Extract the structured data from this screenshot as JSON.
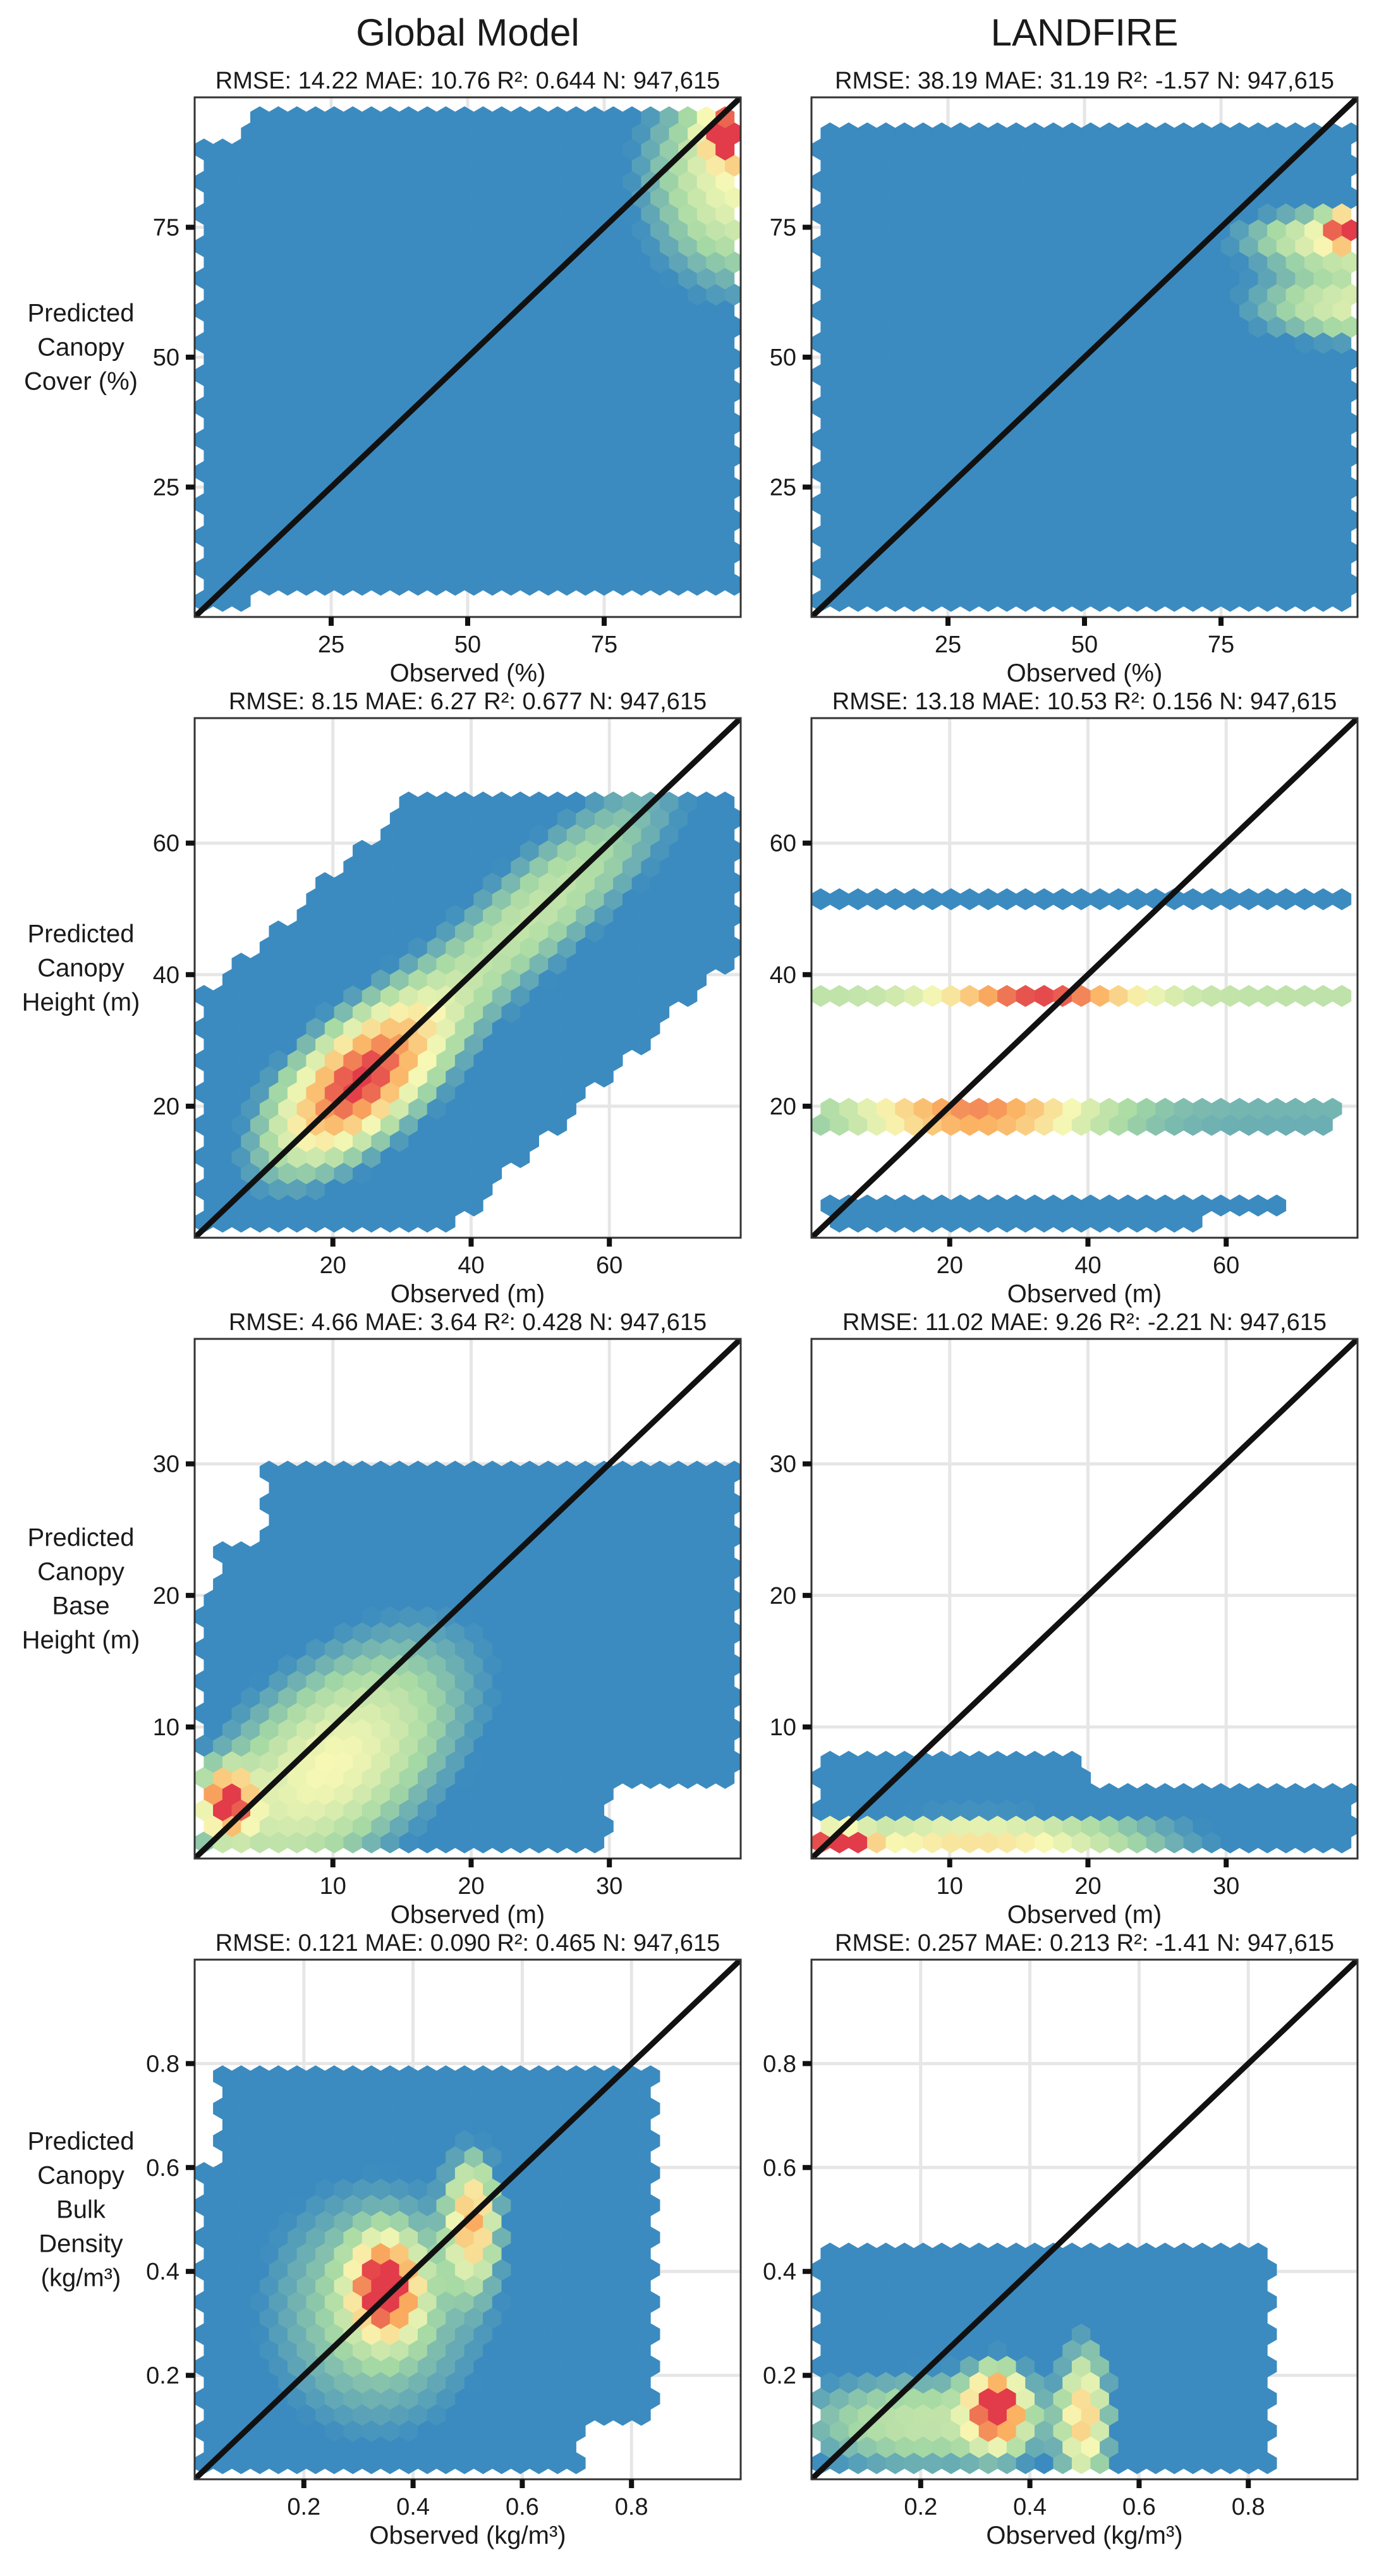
{
  "colors": {
    "base": "#3b8bc0",
    "low": "#a6d9a4",
    "mid": "#f7f8b4",
    "high": "#fbb060",
    "peak": "#e23b49",
    "diagonal": "#111111"
  },
  "chart_data": {
    "type": "heatmap",
    "style": "hexbin density scatter with 1:1 line",
    "columns": [
      "Global Model",
      "LANDFIRE"
    ],
    "rows": [
      {
        "ylabel": [
          "Predicted",
          "Canopy",
          "Cover (%)"
        ],
        "xlabel": "Observed (%)",
        "xlim": [
          0,
          100
        ],
        "ylim": [
          0,
          100
        ],
        "xticks": [
          25,
          50,
          75
        ],
        "yticks": [
          25,
          50,
          75
        ],
        "panels": [
          {
            "column": "Global Model",
            "stats": "RMSE: 14.22 MAE: 10.76 R²: 0.644 N: 947,615"
          },
          {
            "column": "LANDFIRE",
            "stats": "RMSE: 38.19 MAE: 31.19 R²: -1.57 N: 947,615"
          }
        ]
      },
      {
        "ylabel": [
          "Predicted",
          "Canopy",
          "Height (m)"
        ],
        "xlabel": "Observed (m)",
        "xlim": [
          0,
          79
        ],
        "ylim": [
          0,
          79
        ],
        "xticks": [
          20,
          40,
          60
        ],
        "yticks": [
          20,
          40,
          60
        ],
        "panels": [
          {
            "column": "Global Model",
            "stats": "RMSE: 8.15 MAE: 6.27 R²: 0.677 N: 947,615"
          },
          {
            "column": "LANDFIRE",
            "stats": "RMSE: 13.18 MAE: 10.53 R²: 0.156 N: 947,615"
          }
        ]
      },
      {
        "ylabel": [
          "Predicted",
          "Canopy",
          "Base",
          "Height (m)"
        ],
        "xlabel": "Observed (m)",
        "xlim": [
          0,
          39.5
        ],
        "ylim": [
          0,
          39.5
        ],
        "xticks": [
          10,
          20,
          30
        ],
        "yticks": [
          10,
          20,
          30
        ],
        "panels": [
          {
            "column": "Global Model",
            "stats": "RMSE: 4.66 MAE: 3.64 R²: 0.428 N: 947,615"
          },
          {
            "column": "LANDFIRE",
            "stats": "RMSE: 11.02 MAE: 9.26 R²: -2.21 N: 947,615"
          }
        ]
      },
      {
        "ylabel": [
          "Predicted",
          "Canopy",
          "Bulk",
          "Density",
          "(kg/m³)"
        ],
        "xlabel": "Observed (kg/m³)",
        "xlim": [
          0,
          1.0
        ],
        "ylim": [
          0,
          1.0
        ],
        "xticks": [
          0.2,
          0.4,
          0.6,
          0.8
        ],
        "yticks": [
          0.2,
          0.4,
          0.6,
          0.8
        ],
        "panels": [
          {
            "column": "Global Model",
            "stats": "RMSE: 0.121 MAE: 0.090 R²: 0.465 N: 947,615"
          },
          {
            "column": "LANDFIRE",
            "stats": "RMSE: 0.257 MAE: 0.213 R²: -1.41 N: 947,615"
          }
        ]
      }
    ]
  }
}
